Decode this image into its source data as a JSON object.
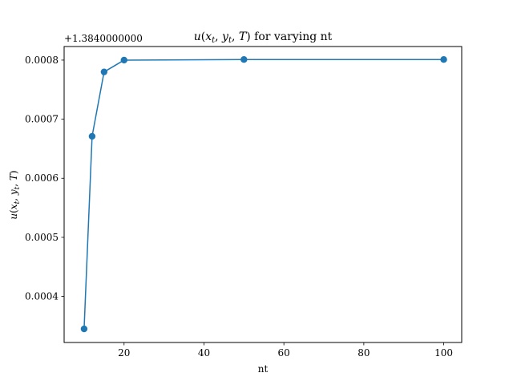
{
  "chart_data": {
    "type": "line",
    "title": {
      "math_fn": "u",
      "math_args_open": "(",
      "x_sym": "x",
      "x_sub": "t",
      "sep1": ", ",
      "y_sym": "y",
      "y_sub": "t",
      "sep2": ", ",
      "t_sym": "T",
      "math_args_close": ")",
      "suffix": " for varying nt"
    },
    "xlabel": "nt",
    "ylabel": {
      "math_fn": "u",
      "math_args_open": "(",
      "x_sym": "x",
      "x_sub": "t",
      "sep1": ", ",
      "y_sym": "y",
      "y_sub": "t",
      "sep2": ", ",
      "t_sym": "T",
      "math_args_close": ")"
    },
    "y_offset_text": "+1.3840000000",
    "xlim": [
      5,
      104.5
    ],
    "ylim": [
      0.000322,
      0.000823
    ],
    "x_ticks": [
      20,
      40,
      60,
      80,
      100
    ],
    "x_tick_labels": [
      "20",
      "40",
      "60",
      "80",
      "100"
    ],
    "y_ticks": [
      0.0004,
      0.0005,
      0.0006,
      0.0007,
      0.0008
    ],
    "y_tick_labels": [
      "0.0004",
      "0.0005",
      "0.0006",
      "0.0007",
      "0.0008"
    ],
    "grid": false,
    "series": [
      {
        "color": "#1f77b4",
        "marker": "circle",
        "x": [
          10,
          12,
          15,
          20,
          50,
          100
        ],
        "y": [
          0.000345,
          0.000671,
          0.00078,
          0.0008,
          0.000801,
          0.000801
        ]
      }
    ]
  }
}
